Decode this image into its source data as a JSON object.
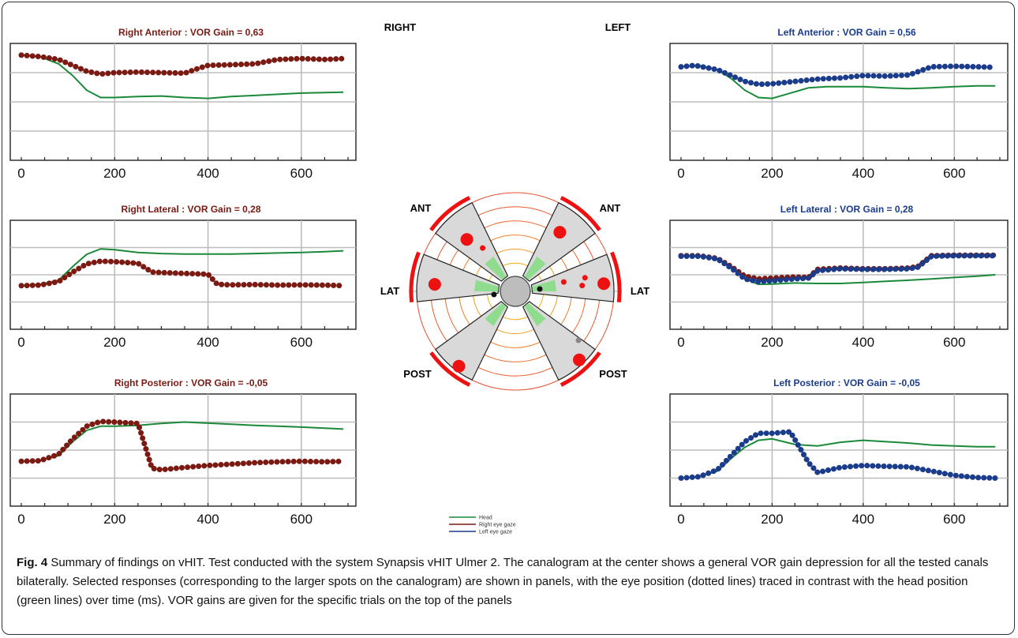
{
  "labels": {
    "right": "RIGHT",
    "left": "LEFT",
    "ant_left": "ANT",
    "ant_right": "ANT",
    "lat_left": "LAT",
    "lat_right": "LAT",
    "post_left": "POST",
    "post_right": "POST"
  },
  "colors": {
    "head": "#1a8a3a",
    "right_eye": "#7a1a12",
    "left_eye": "#1a3c8a",
    "right_title": "#7a1a12",
    "left_title": "#1a3c8a",
    "canal_spot": "#ee1111"
  },
  "legend": [
    "Head",
    "Right eye gaze",
    "Left eye gaze"
  ],
  "caption": {
    "label": "Fig. 4",
    "text": " Summary of findings on vHIT. Test conducted with the system Synapsis vHIT Ulmer 2. The canalogram at the center shows a general VOR gain depression for all the tested canals bilaterally. Selected responses (corresponding to the larger spots on the canalogram) are shown in panels, with the eye position (dotted lines) traced in contrast with the head position (green lines) over time (ms). VOR gains are given for the specific trials on the top of the panels"
  },
  "chart_data": [
    {
      "type": "line",
      "title": "Right Anterior : VOR Gain = 0,63",
      "side": "right",
      "xlim": [
        0,
        700
      ],
      "ylim": [
        0,
        4
      ],
      "xticks": [
        0,
        200,
        400,
        600
      ],
      "series": [
        {
          "role": "head",
          "x": [
            0,
            40,
            80,
            110,
            140,
            170,
            200,
            250,
            300,
            350,
            400,
            450,
            500,
            550,
            600,
            650,
            690
          ],
          "y": [
            3.6,
            3.55,
            3.3,
            2.9,
            2.4,
            2.15,
            2.15,
            2.18,
            2.2,
            2.15,
            2.12,
            2.18,
            2.22,
            2.26,
            2.3,
            2.32,
            2.33
          ]
        },
        {
          "role": "eye",
          "x": [
            0,
            40,
            80,
            110,
            140,
            170,
            200,
            250,
            300,
            350,
            380,
            400,
            450,
            500,
            550,
            600,
            650,
            690
          ],
          "y": [
            3.6,
            3.55,
            3.45,
            3.25,
            3.05,
            2.95,
            3.0,
            3.02,
            3.0,
            2.98,
            3.15,
            3.25,
            3.27,
            3.3,
            3.45,
            3.48,
            3.45,
            3.48
          ]
        }
      ]
    },
    {
      "type": "line",
      "title": "Left Anterior : VOR Gain = 0,56",
      "side": "left",
      "xlim": [
        0,
        700
      ],
      "ylim": [
        0,
        4
      ],
      "xticks": [
        0,
        200,
        400,
        600
      ],
      "series": [
        {
          "role": "head",
          "x": [
            0,
            40,
            80,
            110,
            140,
            170,
            200,
            240,
            280,
            320,
            400,
            450,
            500,
            550,
            600,
            650,
            690
          ],
          "y": [
            3.2,
            3.25,
            3.1,
            2.8,
            2.4,
            2.15,
            2.12,
            2.3,
            2.48,
            2.52,
            2.52,
            2.48,
            2.45,
            2.48,
            2.52,
            2.55,
            2.55
          ]
        },
        {
          "role": "eye",
          "x": [
            0,
            30,
            80,
            110,
            140,
            170,
            200,
            250,
            300,
            350,
            400,
            450,
            500,
            550,
            600,
            650,
            690
          ],
          "y": [
            3.2,
            3.25,
            3.1,
            2.9,
            2.7,
            2.6,
            2.62,
            2.7,
            2.78,
            2.82,
            2.9,
            2.88,
            2.92,
            3.2,
            3.22,
            3.2,
            3.18
          ]
        }
      ]
    },
    {
      "type": "line",
      "title": "Right Lateral : VOR Gain = 0,28",
      "side": "right",
      "xlim": [
        0,
        700
      ],
      "ylim": [
        0,
        4
      ],
      "xticks": [
        0,
        200,
        400,
        600
      ],
      "series": [
        {
          "role": "head",
          "x": [
            0,
            40,
            80,
            110,
            140,
            170,
            200,
            250,
            300,
            350,
            400,
            450,
            500,
            550,
            600,
            650,
            690
          ],
          "y": [
            1.6,
            1.65,
            1.8,
            2.3,
            2.75,
            2.95,
            2.92,
            2.82,
            2.78,
            2.76,
            2.76,
            2.76,
            2.78,
            2.8,
            2.82,
            2.85,
            2.88
          ]
        },
        {
          "role": "eye",
          "x": [
            0,
            40,
            80,
            110,
            140,
            170,
            200,
            250,
            280,
            300,
            350,
            400,
            420,
            450,
            500,
            550,
            600,
            650,
            690
          ],
          "y": [
            1.6,
            1.62,
            1.75,
            2.1,
            2.4,
            2.5,
            2.48,
            2.42,
            2.1,
            2.08,
            2.05,
            2.02,
            1.65,
            1.63,
            1.64,
            1.62,
            1.63,
            1.62,
            1.6
          ]
        }
      ]
    },
    {
      "type": "line",
      "title": "Left Lateral : VOR Gain = 0,28",
      "side": "left",
      "xlim": [
        0,
        700
      ],
      "ylim": [
        0,
        4
      ],
      "xticks": [
        0,
        200,
        400,
        600
      ],
      "series": [
        {
          "role": "head",
          "x": [
            0,
            40,
            80,
            110,
            140,
            170,
            200,
            250,
            300,
            350,
            400,
            450,
            500,
            550,
            600,
            650,
            690
          ],
          "y": [
            2.7,
            2.68,
            2.6,
            2.3,
            1.85,
            1.65,
            1.66,
            1.7,
            1.68,
            1.68,
            1.72,
            1.76,
            1.8,
            1.85,
            1.9,
            1.95,
            2.0
          ]
        },
        {
          "role": "right_eye",
          "x": [
            0,
            40,
            80,
            110,
            140,
            170,
            200,
            250,
            280,
            300,
            350,
            400,
            450,
            500,
            520,
            550,
            600,
            650,
            690
          ],
          "y": [
            2.7,
            2.7,
            2.6,
            2.3,
            1.95,
            1.85,
            1.88,
            1.92,
            1.9,
            2.2,
            2.25,
            2.22,
            2.22,
            2.25,
            2.3,
            2.7,
            2.72,
            2.72,
            2.72
          ]
        },
        {
          "role": "left_eye",
          "x": [
            0,
            40,
            80,
            110,
            140,
            170,
            200,
            250,
            280,
            300,
            350,
            400,
            450,
            500,
            520,
            550,
            600,
            650,
            690
          ],
          "y": [
            2.68,
            2.68,
            2.58,
            2.25,
            1.85,
            1.75,
            1.78,
            1.85,
            1.88,
            2.15,
            2.22,
            2.2,
            2.2,
            2.22,
            2.28,
            2.68,
            2.7,
            2.7,
            2.7
          ]
        }
      ]
    },
    {
      "type": "line",
      "title": "Right Posterior : VOR Gain = -0,05",
      "side": "right",
      "xlim": [
        0,
        700
      ],
      "ylim": [
        0,
        4
      ],
      "xticks": [
        0,
        200,
        400,
        600
      ],
      "series": [
        {
          "role": "head",
          "x": [
            0,
            40,
            80,
            110,
            140,
            170,
            200,
            250,
            300,
            350,
            400,
            450,
            500,
            550,
            600,
            650,
            690
          ],
          "y": [
            1.6,
            1.62,
            1.8,
            2.3,
            2.7,
            2.85,
            2.85,
            2.88,
            2.95,
            3.0,
            2.96,
            2.92,
            2.88,
            2.85,
            2.82,
            2.78,
            2.75
          ]
        },
        {
          "role": "eye",
          "x": [
            0,
            40,
            80,
            110,
            140,
            170,
            200,
            250,
            280,
            300,
            350,
            400,
            450,
            500,
            550,
            600,
            650,
            690
          ],
          "y": [
            1.6,
            1.62,
            1.85,
            2.4,
            2.85,
            3.02,
            3.0,
            2.95,
            1.35,
            1.3,
            1.38,
            1.45,
            1.5,
            1.55,
            1.58,
            1.6,
            1.58,
            1.6
          ]
        }
      ]
    },
    {
      "type": "line",
      "title": "Left Posterior : VOR Gain = -0,05",
      "side": "left",
      "xlim": [
        0,
        700
      ],
      "ylim": [
        0,
        4
      ],
      "xticks": [
        0,
        200,
        400,
        600
      ],
      "series": [
        {
          "role": "head",
          "x": [
            0,
            40,
            80,
            110,
            140,
            170,
            200,
            250,
            300,
            350,
            400,
            450,
            500,
            550,
            600,
            650,
            690
          ],
          "y": [
            1.0,
            1.05,
            1.25,
            1.7,
            2.1,
            2.35,
            2.4,
            2.2,
            2.15,
            2.28,
            2.35,
            2.3,
            2.25,
            2.18,
            2.15,
            2.12,
            2.12
          ]
        },
        {
          "role": "eye",
          "x": [
            0,
            40,
            80,
            110,
            140,
            170,
            200,
            240,
            260,
            280,
            300,
            350,
            400,
            450,
            500,
            550,
            600,
            650,
            690
          ],
          "y": [
            1.0,
            1.05,
            1.3,
            1.8,
            2.3,
            2.6,
            2.6,
            2.65,
            2.1,
            1.55,
            1.2,
            1.38,
            1.45,
            1.42,
            1.4,
            1.25,
            1.1,
            1.02,
            1.0
          ]
        }
      ]
    },
    {
      "type": "polar",
      "title": "",
      "categories": [
        "ANT left",
        "ANT right",
        "LAT left",
        "LAT right",
        "POST left",
        "POST right"
      ],
      "spots": [
        {
          "canal": "ANT left",
          "radius": [
            0.72,
            0.55
          ],
          "size": [
            "large",
            "small"
          ]
        },
        {
          "canal": "ANT right",
          "radius": [
            0.75
          ],
          "size": [
            "large"
          ]
        },
        {
          "canal": "LAT left",
          "radius": [
            0.82
          ],
          "size": [
            "large"
          ]
        },
        {
          "canal": "LAT right",
          "radius": [
            0.5,
            0.68,
            0.72,
            0.9
          ],
          "size": [
            "small",
            "small",
            "small",
            "large"
          ]
        },
        {
          "canal": "POST left",
          "radius": [
            0.95
          ],
          "size": [
            "large"
          ]
        },
        {
          "canal": "POST right",
          "radius": [
            0.95
          ],
          "size": [
            "large"
          ]
        }
      ]
    }
  ]
}
